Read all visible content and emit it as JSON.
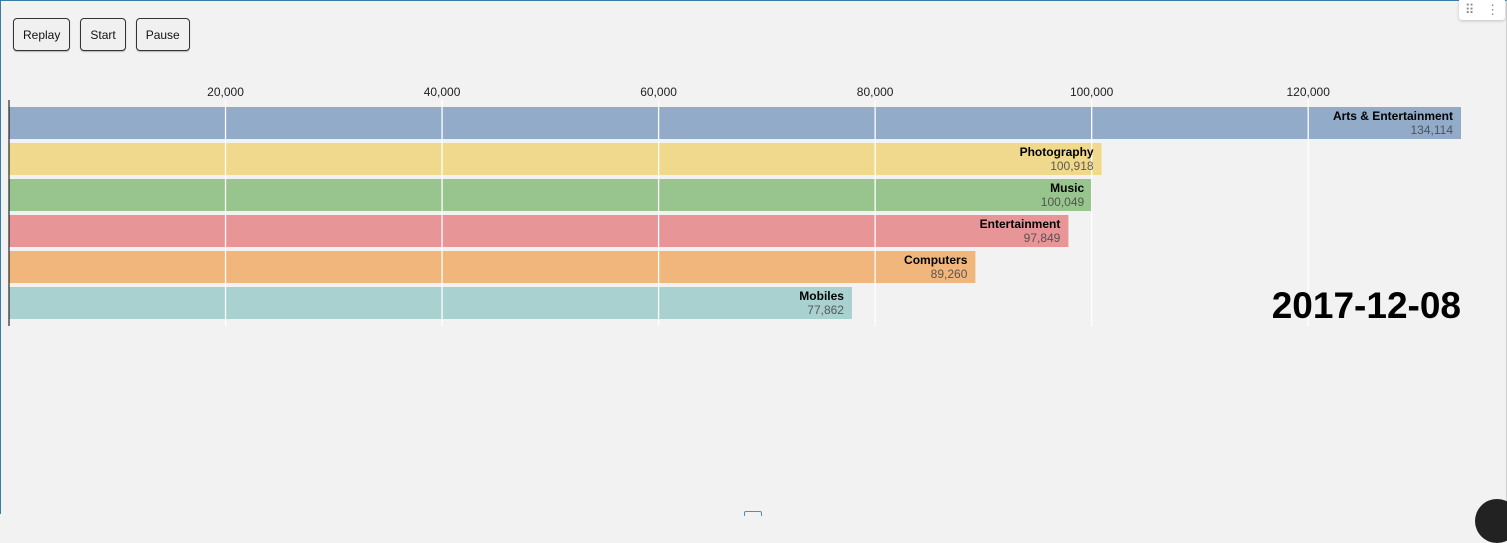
{
  "controls": {
    "replay_label": "Replay",
    "start_label": "Start",
    "pause_label": "Pause"
  },
  "corner_menu": {
    "drag_icon": "drag-handle-icon",
    "more_icon": "more-vertical-icon"
  },
  "chart_data": {
    "type": "bar",
    "orientation": "horizontal",
    "date": "2017-12-08",
    "categories": [
      "Arts & Entertainment",
      "Photography",
      "Music",
      "Entertainment",
      "Computers",
      "Mobiles"
    ],
    "values": [
      134114,
      100918,
      100049,
      97849,
      89260,
      77862
    ],
    "value_labels": [
      "134,114",
      "100,918",
      "100,049",
      "97,849",
      "89,260",
      "77,862"
    ],
    "colors": [
      "#91abc9",
      "#f0d98c",
      "#98c48e",
      "#e89598",
      "#f1b67c",
      "#a9d1cf"
    ],
    "x_ticks": [
      20000,
      40000,
      60000,
      80000,
      100000,
      120000
    ],
    "x_tick_labels": [
      "20,000",
      "40,000",
      "60,000",
      "80,000",
      "100,000",
      "120,000"
    ],
    "xlim": [
      0,
      134114
    ],
    "grid": true
  }
}
